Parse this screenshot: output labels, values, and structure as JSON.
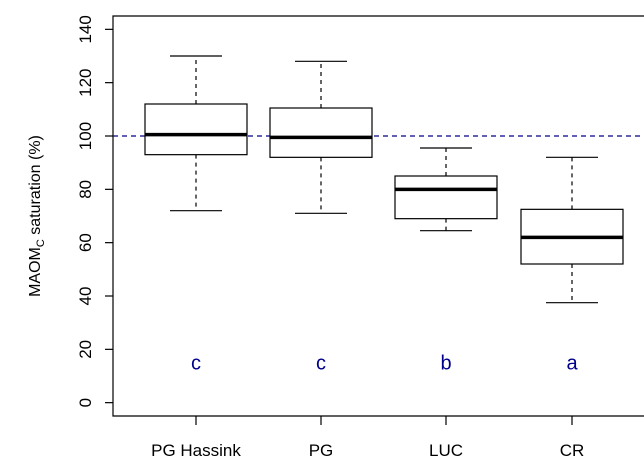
{
  "chart_data": {
    "type": "box",
    "title": "",
    "xlabel": "",
    "ylabel": {
      "prefix": "MAOM",
      "subscript": "C",
      "suffix": " saturation (%)"
    },
    "ylim": [
      -5,
      145
    ],
    "yticks": [
      0,
      20,
      40,
      60,
      80,
      100,
      120,
      140
    ],
    "categories": [
      "PG Hassink",
      "PG",
      "LUC",
      "CR"
    ],
    "boxes": [
      {
        "category": "PG Hassink",
        "whisker_low": 72,
        "q1": 93,
        "median": 100.5,
        "q3": 112,
        "whisker_high": 130
      },
      {
        "category": "PG",
        "whisker_low": 71,
        "q1": 92,
        "median": 99.5,
        "q3": 110.5,
        "whisker_high": 128
      },
      {
        "category": "LUC",
        "whisker_low": 64.5,
        "q1": 69,
        "median": 80,
        "q3": 85,
        "whisker_high": 95.5
      },
      {
        "category": "CR",
        "whisker_low": 37.5,
        "q1": 52,
        "median": 62,
        "q3": 72.5,
        "whisker_high": 92
      }
    ],
    "significance_letters": [
      "c",
      "c",
      "b",
      "a"
    ],
    "letter_y": 15,
    "reference_line": {
      "y": 100,
      "style": "dashed",
      "color": "#00008b"
    },
    "colors": {
      "box": "#000000",
      "letters": "#00008b",
      "reference_line": "#00008b"
    },
    "grid": false,
    "legend": "none"
  }
}
